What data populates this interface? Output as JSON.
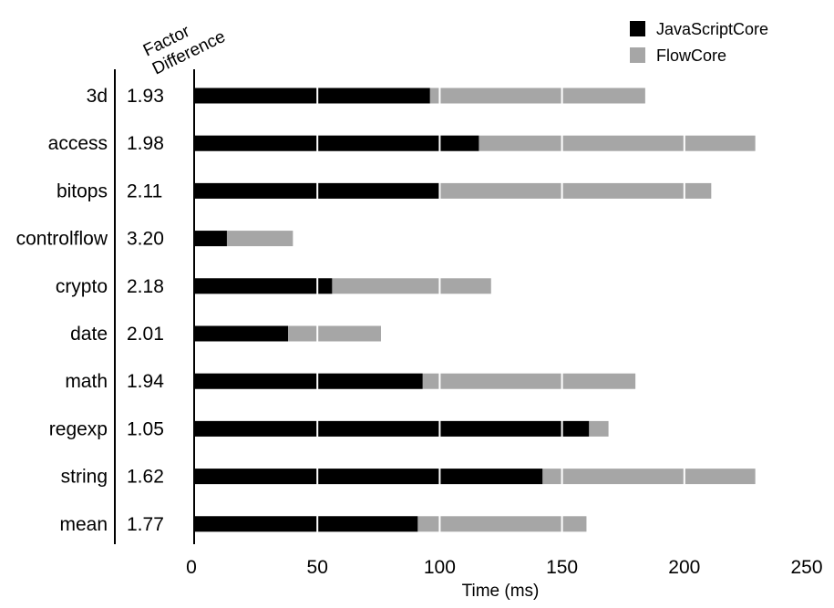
{
  "chart_data": {
    "type": "bar",
    "stacked": false,
    "orientation": "horizontal",
    "title": "",
    "xlabel": "Time (ms)",
    "ylabel": "",
    "xlim": [
      0,
      250
    ],
    "xticks": [
      0,
      50,
      100,
      150,
      200,
      250
    ],
    "factor_header": [
      "Factor",
      "Difference"
    ],
    "categories": [
      "3d",
      "access",
      "bitops",
      "controlflow",
      "crypto",
      "date",
      "math",
      "regexp",
      "string",
      "mean"
    ],
    "factors": [
      "1.93",
      "1.98",
      "2.11",
      "3.20",
      "2.18",
      "2.01",
      "1.94",
      "1.05",
      "1.62",
      "1.77"
    ],
    "series": [
      {
        "name": "JavaScriptCore",
        "color": "#000000",
        "values": [
          96,
          116,
          100,
          13,
          56,
          38,
          93,
          161,
          142,
          91
        ]
      },
      {
        "name": "FlowCore",
        "color": "#a6a6a6",
        "values": [
          184,
          229,
          211,
          40,
          121,
          76,
          180,
          169,
          229,
          160
        ]
      }
    ],
    "grid": true,
    "legend_position": "top-right"
  }
}
